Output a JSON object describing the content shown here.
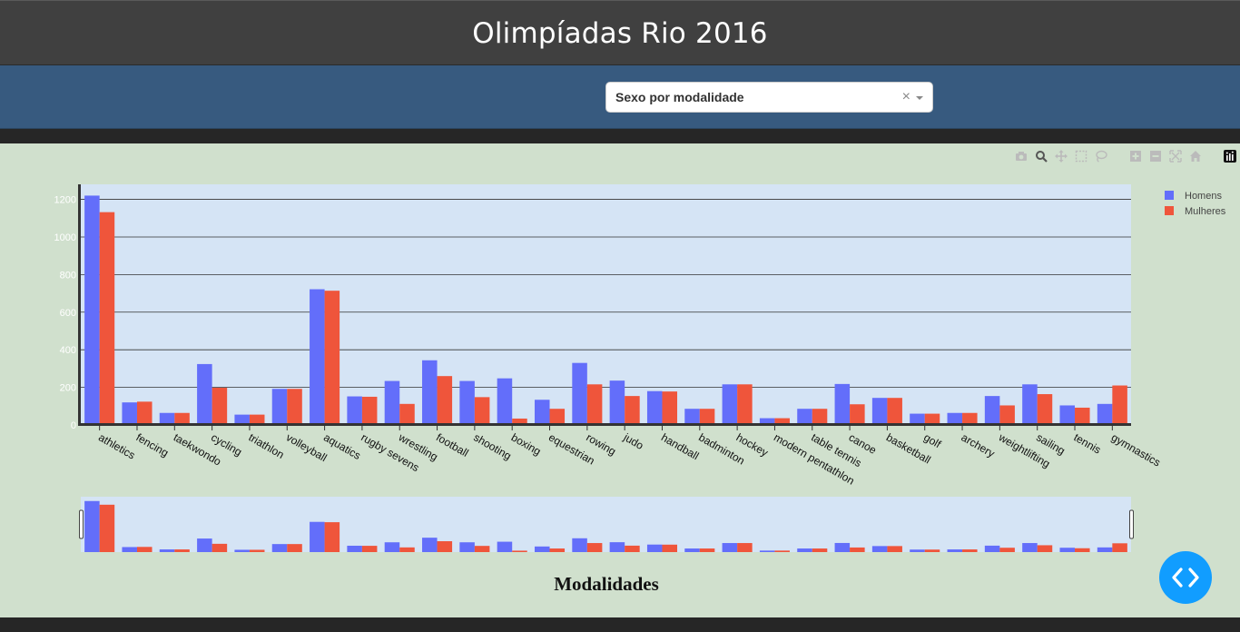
{
  "header": {
    "title": "Olimpíadas Rio 2016"
  },
  "dropdown": {
    "selected": "Sexo por modalidade",
    "clear_symbol": "×"
  },
  "modebar": [
    "camera-icon",
    "zoom-icon",
    "pan-icon",
    "box-select-icon",
    "lasso-select-icon",
    "zoom-in-icon",
    "zoom-out-icon",
    "autoscale-icon",
    "reset-axes-icon",
    "plotly-logo"
  ],
  "colors": {
    "homens": "#636efa",
    "mulheres": "#ef553b",
    "plot_bg": "#d5e4f5",
    "paper_bg": "#d0e0cd",
    "header_bg": "#404040",
    "controls_bg": "#375a7f",
    "fab": "#119dff"
  },
  "chart_data": {
    "type": "bar",
    "barmode": "group",
    "xlabel": "Modalidades",
    "ylim": [
      0,
      1280
    ],
    "yticks": [
      0,
      200,
      400,
      600,
      800,
      1000,
      1200
    ],
    "legend_position": "top-right",
    "grid": true,
    "rangeslider": true,
    "categories": [
      "athletics",
      "fencing",
      "taekwondo",
      "cycling",
      "triathlon",
      "volleyball",
      "aquatics",
      "rugby sevens",
      "wrestling",
      "football",
      "shooting",
      "boxing",
      "equestrian",
      "rowing",
      "judo",
      "handball",
      "badminton",
      "hockey",
      "modern pentathlon",
      "table tennis",
      "canoe",
      "basketball",
      "golf",
      "archery",
      "weightlifting",
      "sailing",
      "tennis",
      "gymnastics"
    ],
    "series": [
      {
        "name": "Homens",
        "values": [
          1220,
          120,
          64,
          324,
          55,
          192,
          722,
          152,
          234,
          344,
          234,
          248,
          134,
          330,
          236,
          180,
          86,
          216,
          36,
          86,
          218,
          144,
          60,
          64,
          154,
          216,
          104,
          112
        ]
      },
      {
        "name": "Mulheres",
        "values": [
          1132,
          124,
          64,
          198,
          55,
          192,
          714,
          150,
          112,
          260,
          148,
          34,
          86,
          216,
          154,
          178,
          86,
          216,
          36,
          86,
          110,
          144,
          60,
          64,
          104,
          164,
          92,
          210
        ]
      }
    ]
  }
}
